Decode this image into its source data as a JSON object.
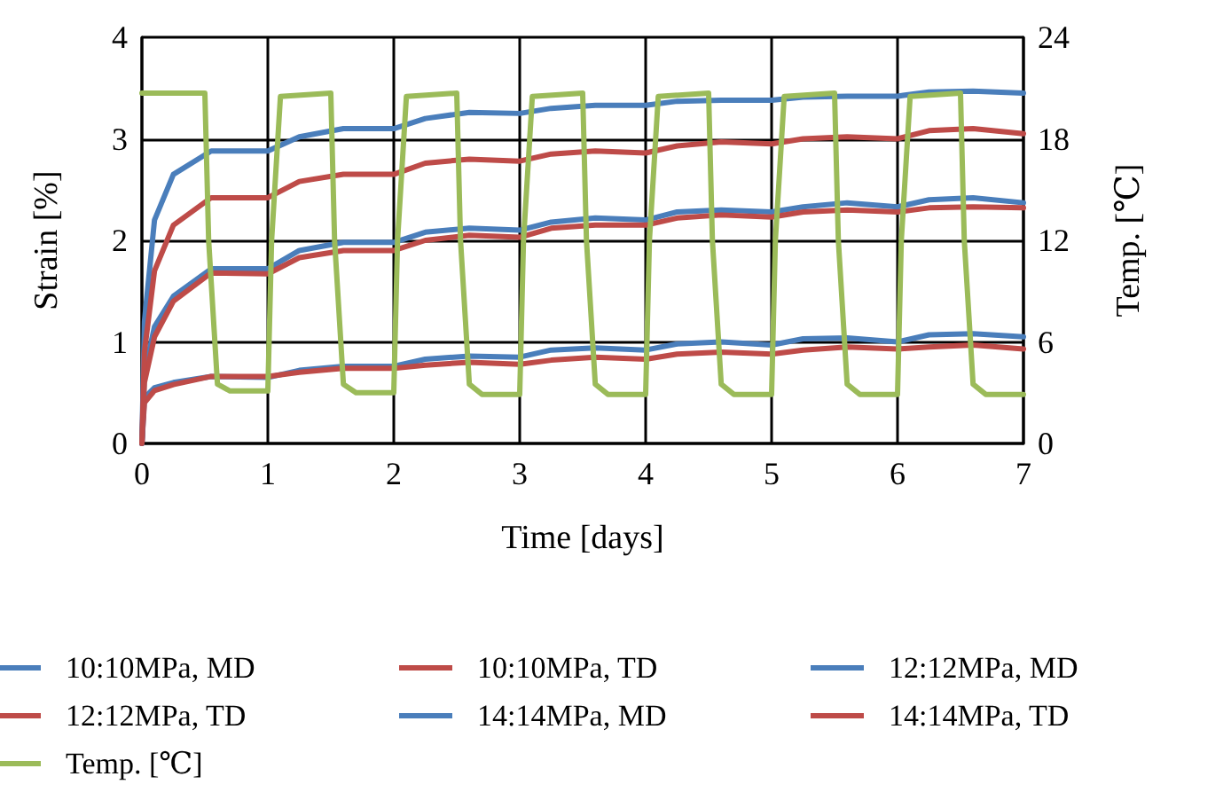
{
  "chart_data": {
    "type": "line",
    "xlabel": "Time [days]",
    "ylabel": "Strain [%]",
    "y2label": "Temp. [℃]",
    "xlim": [
      0,
      7
    ],
    "xticks": [
      0,
      1,
      2,
      3,
      4,
      5,
      6,
      7
    ],
    "ylim": [
      0,
      4
    ],
    "yticks": [
      0,
      1,
      2,
      3,
      4
    ],
    "y2lim": [
      0,
      24
    ],
    "y2ticks": [
      0,
      6,
      12,
      18,
      24
    ],
    "grid": true,
    "legend": "bottom",
    "marker": "none",
    "line_style": "solid",
    "x": [
      0,
      0.02,
      0.1,
      0.25,
      0.55,
      1,
      1.25,
      1.6,
      2,
      2.25,
      2.6,
      3,
      3.25,
      3.6,
      4,
      4.25,
      4.6,
      5,
      5.25,
      5.6,
      6,
      6.25,
      6.6,
      7
    ],
    "series": [
      {
        "name": "10:10MPa, MD",
        "color": "#4a7ebb",
        "values": [
          0,
          0.45,
          0.55,
          0.6,
          0.66,
          0.65,
          0.72,
          0.76,
          0.76,
          0.83,
          0.86,
          0.85,
          0.92,
          0.94,
          0.92,
          0.98,
          1.0,
          0.97,
          1.03,
          1.04,
          1.0,
          1.07,
          1.08,
          1.05
        ]
      },
      {
        "name": "10:10MPa, TD",
        "color": "#be4b48",
        "values": [
          0,
          0.4,
          0.52,
          0.58,
          0.66,
          0.66,
          0.7,
          0.74,
          0.74,
          0.77,
          0.8,
          0.78,
          0.82,
          0.85,
          0.83,
          0.88,
          0.9,
          0.88,
          0.92,
          0.95,
          0.93,
          0.95,
          0.97,
          0.93
        ]
      },
      {
        "name": "12:12MPa, MD",
        "color": "#4a7ebb",
        "values": [
          0,
          0.7,
          1.15,
          1.45,
          1.72,
          1.72,
          1.9,
          1.98,
          1.98,
          2.08,
          2.12,
          2.1,
          2.18,
          2.22,
          2.2,
          2.28,
          2.3,
          2.28,
          2.33,
          2.37,
          2.33,
          2.4,
          2.42,
          2.37
        ]
      },
      {
        "name": "12:12MPa, TD",
        "color": "#be4b48",
        "values": [
          0,
          0.6,
          1.05,
          1.4,
          1.68,
          1.67,
          1.83,
          1.9,
          1.9,
          2.0,
          2.05,
          2.03,
          2.12,
          2.15,
          2.15,
          2.22,
          2.25,
          2.23,
          2.28,
          2.3,
          2.28,
          2.32,
          2.33,
          2.32
        ]
      },
      {
        "name": "14:14MPa, MD",
        "color": "#4a7ebb",
        "values": [
          0,
          1.2,
          2.2,
          2.65,
          2.88,
          2.88,
          3.02,
          3.1,
          3.1,
          3.2,
          3.26,
          3.25,
          3.3,
          3.33,
          3.33,
          3.37,
          3.38,
          3.38,
          3.41,
          3.42,
          3.42,
          3.46,
          3.47,
          3.45
        ]
      },
      {
        "name": "14:14MPa, TD",
        "color": "#be4b48",
        "values": [
          0,
          0.9,
          1.7,
          2.15,
          2.42,
          2.42,
          2.58,
          2.65,
          2.65,
          2.76,
          2.8,
          2.78,
          2.85,
          2.88,
          2.86,
          2.93,
          2.97,
          2.95,
          3.0,
          3.02,
          3.0,
          3.08,
          3.1,
          3.05
        ]
      },
      {
        "name": "Temp. [℃]",
        "color": "#9bbb59",
        "axis": "y2",
        "x": [
          0,
          0.5,
          0.53,
          0.6,
          0.7,
          1,
          1.03,
          1.1,
          1.5,
          1.53,
          1.6,
          1.7,
          2,
          2.03,
          2.1,
          2.5,
          2.53,
          2.6,
          2.7,
          3,
          3.03,
          3.1,
          3.5,
          3.53,
          3.6,
          3.7,
          4,
          4.03,
          4.1,
          4.5,
          4.53,
          4.6,
          4.7,
          5,
          5.03,
          5.1,
          5.5,
          5.53,
          5.6,
          5.7,
          6,
          6.03,
          6.1,
          6.5,
          6.53,
          6.6,
          6.7,
          7
        ],
        "values": [
          20.7,
          20.7,
          12,
          3.5,
          3.1,
          3.1,
          12,
          20.5,
          20.7,
          12,
          3.5,
          3,
          3,
          12,
          20.5,
          20.7,
          12,
          3.5,
          2.9,
          2.9,
          12,
          20.5,
          20.7,
          12,
          3.5,
          2.9,
          2.9,
          12,
          20.5,
          20.7,
          12,
          3.5,
          2.9,
          2.9,
          12,
          20.5,
          20.7,
          12,
          3.5,
          2.9,
          2.9,
          12,
          20.5,
          20.7,
          12,
          3.5,
          2.9,
          2.9
        ]
      }
    ]
  }
}
